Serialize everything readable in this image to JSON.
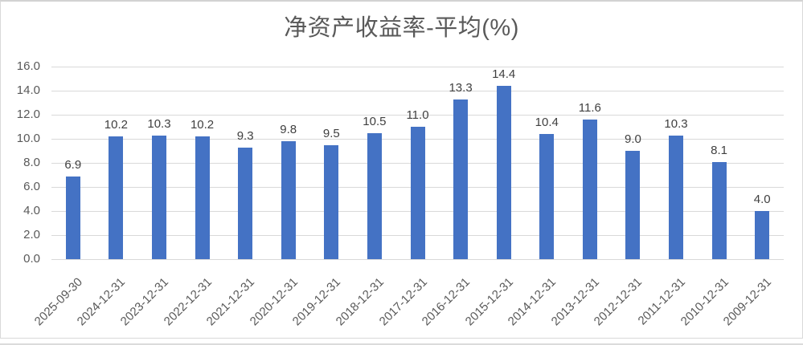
{
  "chart_data": {
    "type": "bar",
    "title": "净资产收益率-平均(%)",
    "categories": [
      "2025-09-30",
      "2024-12-31",
      "2023-12-31",
      "2022-12-31",
      "2021-12-31",
      "2020-12-31",
      "2019-12-31",
      "2018-12-31",
      "2017-12-31",
      "2016-12-31",
      "2015-12-31",
      "2014-12-31",
      "2013-12-31",
      "2012-12-31",
      "2011-12-31",
      "2010-12-31",
      "2009-12-31"
    ],
    "values": [
      6.9,
      10.2,
      10.3,
      10.2,
      9.3,
      9.8,
      9.5,
      10.5,
      11.0,
      13.3,
      14.4,
      10.4,
      11.6,
      9.0,
      10.3,
      8.1,
      4.0
    ],
    "data_labels": [
      "6.9",
      "10.2",
      "10.3",
      "10.2",
      "9.3",
      "9.8",
      "9.5",
      "10.5",
      "11.0",
      "13.3",
      "14.4",
      "10.4",
      "11.6",
      "9.0",
      "10.3",
      "8.1",
      "4.0"
    ],
    "xlabel": "",
    "ylabel": "",
    "ylim": [
      0,
      16
    ],
    "ytick_step": 2,
    "ytick_labels": [
      "0.0",
      "2.0",
      "4.0",
      "6.0",
      "8.0",
      "10.0",
      "12.0",
      "14.0",
      "16.0"
    ],
    "grid": "horizontal",
    "legend": "none",
    "x_label_rotation_deg": 45,
    "colors": {
      "bar": "#4472c4",
      "gridline": "#d9d9d9",
      "title": "#595959",
      "axis_labels": "#595959",
      "data_labels": "#404040",
      "background": "#ffffff",
      "frame_border": "#d9d9d9"
    }
  }
}
